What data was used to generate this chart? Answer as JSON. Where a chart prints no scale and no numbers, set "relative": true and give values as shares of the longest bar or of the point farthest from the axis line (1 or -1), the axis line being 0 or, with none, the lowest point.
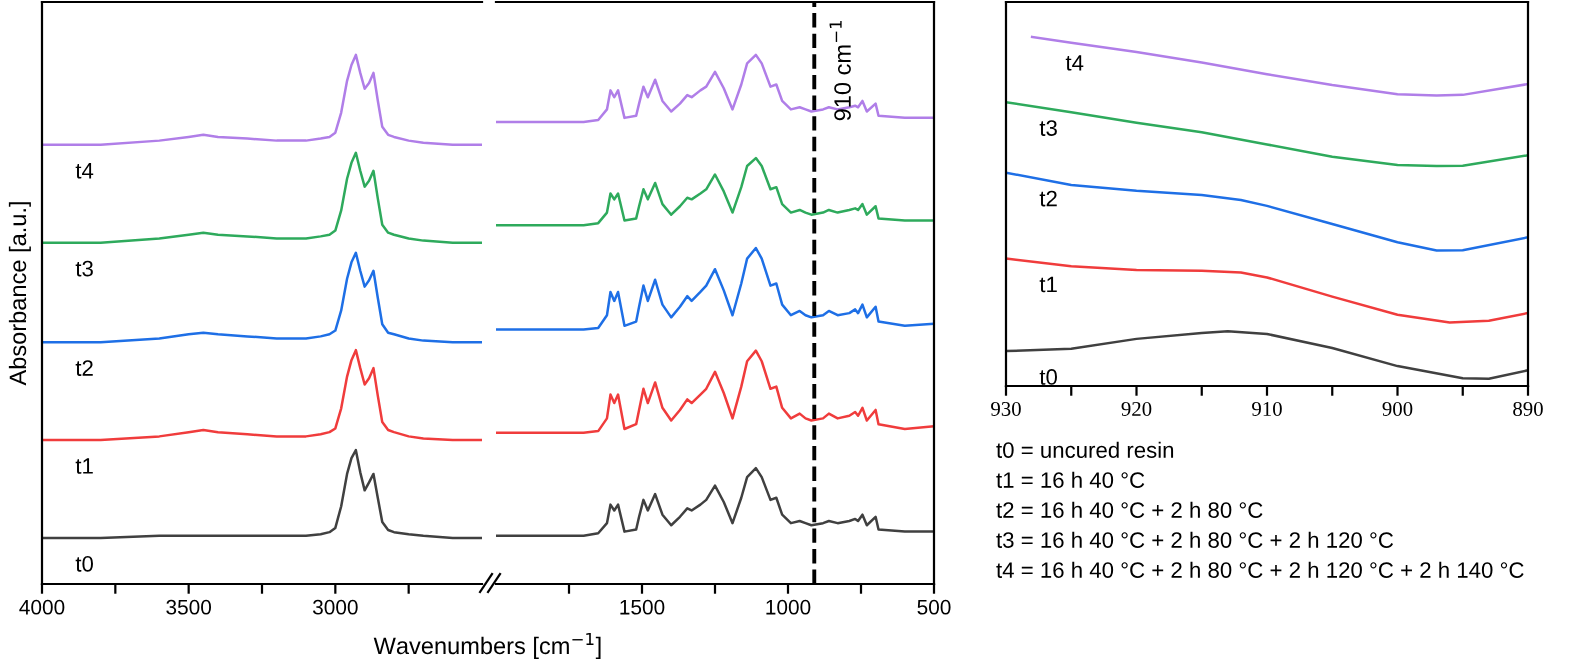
{
  "chart_data": [
    {
      "type": "line",
      "relative": true,
      "ylabel": "Absorbance [a.u.]",
      "xlabel": "Wavenumbers [cm$^{−1}$]",
      "xlim": [
        4000,
        2500
      ],
      "xticks": [
        4000,
        {
          "value": 3750,
          "label": null
        },
        3500,
        {
          "value": 3250,
          "label": null
        },
        3000,
        {
          "value": 2750,
          "label": null
        }
      ],
      "x": [
        4000,
        3800,
        3600,
        3500,
        3450,
        3400,
        3300,
        3200,
        3100,
        3050,
        3020,
        3000,
        2980,
        2960,
        2945,
        2930,
        2915,
        2900,
        2885,
        2870,
        2855,
        2840,
        2820,
        2800,
        2750,
        2700,
        2600,
        2500
      ],
      "series": [
        {
          "name": "t0",
          "color": "#404040",
          "values": [
            0.087,
            0.087,
            0.091,
            0.091,
            0.091,
            0.091,
            0.091,
            0.091,
            0.091,
            0.094,
            0.098,
            0.106,
            0.147,
            0.208,
            0.238,
            0.253,
            0.211,
            0.177,
            0.192,
            0.208,
            0.162,
            0.117,
            0.102,
            0.098,
            0.094,
            0.091,
            0.087,
            0.087
          ]
        },
        {
          "name": "t1",
          "color": "#f03c3c",
          "values": [
            0.272,
            0.272,
            0.279,
            0.287,
            0.291,
            0.287,
            0.283,
            0.279,
            0.279,
            0.283,
            0.287,
            0.294,
            0.332,
            0.392,
            0.423,
            0.442,
            0.408,
            0.377,
            0.389,
            0.408,
            0.355,
            0.306,
            0.291,
            0.287,
            0.279,
            0.275,
            0.272,
            0.272
          ]
        },
        {
          "name": "t2",
          "color": "#1e6fe6",
          "values": [
            0.457,
            0.457,
            0.464,
            0.472,
            0.475,
            0.472,
            0.468,
            0.464,
            0.464,
            0.468,
            0.472,
            0.479,
            0.517,
            0.577,
            0.608,
            0.626,
            0.592,
            0.562,
            0.574,
            0.592,
            0.54,
            0.491,
            0.475,
            0.472,
            0.464,
            0.46,
            0.457,
            0.457
          ]
        },
        {
          "name": "t3",
          "color": "#2eaa5c",
          "values": [
            0.645,
            0.645,
            0.653,
            0.66,
            0.664,
            0.66,
            0.657,
            0.653,
            0.653,
            0.657,
            0.66,
            0.668,
            0.706,
            0.766,
            0.796,
            0.815,
            0.781,
            0.751,
            0.762,
            0.781,
            0.728,
            0.679,
            0.664,
            0.66,
            0.653,
            0.649,
            0.645,
            0.645
          ]
        },
        {
          "name": "t4",
          "color": "#b07ee8",
          "values": [
            0.83,
            0.83,
            0.838,
            0.845,
            0.849,
            0.845,
            0.842,
            0.838,
            0.838,
            0.842,
            0.845,
            0.853,
            0.891,
            0.951,
            0.981,
            1.0,
            0.966,
            0.936,
            0.947,
            0.966,
            0.913,
            0.864,
            0.849,
            0.845,
            0.838,
            0.834,
            0.83,
            0.83
          ]
        }
      ]
    },
    {
      "type": "line",
      "relative": true,
      "xlim": [
        2000,
        500
      ],
      "xticks": [
        {
          "value": 1750,
          "label": null
        },
        1500,
        {
          "value": 1250,
          "label": null
        },
        1000,
        {
          "value": 750,
          "label": null
        },
        500
      ],
      "x": [
        2000,
        1700,
        1650,
        1620,
        1608,
        1595,
        1582,
        1560,
        1520,
        1510,
        1495,
        1480,
        1455,
        1430,
        1400,
        1370,
        1345,
        1330,
        1300,
        1280,
        1250,
        1220,
        1190,
        1160,
        1140,
        1110,
        1090,
        1060,
        1040,
        1020,
        990,
        960,
        940,
        920,
        880,
        860,
        830,
        790,
        770,
        760,
        745,
        730,
        700,
        690,
        600,
        500
      ],
      "ref_lines": [
        {
          "axis": "x",
          "value": 910,
          "label": "910 cm$^{−1}$",
          "color": "#000000",
          "line_style": "dashed"
        }
      ],
      "series": [
        {
          "color": "#404040",
          "values": [
            0.091,
            0.091,
            0.096,
            0.115,
            0.15,
            0.139,
            0.15,
            0.099,
            0.103,
            0.127,
            0.159,
            0.139,
            0.17,
            0.131,
            0.111,
            0.127,
            0.143,
            0.139,
            0.15,
            0.159,
            0.186,
            0.155,
            0.115,
            0.163,
            0.202,
            0.219,
            0.202,
            0.159,
            0.163,
            0.131,
            0.115,
            0.119,
            0.115,
            0.111,
            0.115,
            0.119,
            0.115,
            0.119,
            0.123,
            0.119,
            0.131,
            0.111,
            0.127,
            0.103,
            0.099,
            0.099
          ]
        },
        {
          "color": "#f03c3c",
          "values": [
            0.286,
            0.286,
            0.289,
            0.313,
            0.358,
            0.342,
            0.358,
            0.293,
            0.302,
            0.329,
            0.369,
            0.342,
            0.381,
            0.333,
            0.309,
            0.329,
            0.349,
            0.342,
            0.358,
            0.369,
            0.401,
            0.361,
            0.313,
            0.373,
            0.421,
            0.441,
            0.421,
            0.369,
            0.373,
            0.333,
            0.313,
            0.322,
            0.313,
            0.309,
            0.313,
            0.322,
            0.313,
            0.318,
            0.325,
            0.318,
            0.333,
            0.309,
            0.329,
            0.302,
            0.293,
            0.298
          ]
        },
        {
          "color": "#1e6fe6",
          "values": [
            0.481,
            0.481,
            0.484,
            0.508,
            0.552,
            0.535,
            0.552,
            0.488,
            0.496,
            0.524,
            0.564,
            0.535,
            0.575,
            0.528,
            0.504,
            0.524,
            0.544,
            0.535,
            0.552,
            0.564,
            0.595,
            0.555,
            0.508,
            0.568,
            0.615,
            0.635,
            0.615,
            0.564,
            0.568,
            0.528,
            0.508,
            0.516,
            0.508,
            0.504,
            0.508,
            0.516,
            0.508,
            0.512,
            0.519,
            0.512,
            0.528,
            0.504,
            0.524,
            0.496,
            0.488,
            0.492
          ]
        },
        {
          "color": "#2eaa5c",
          "values": [
            0.678,
            0.678,
            0.682,
            0.702,
            0.738,
            0.727,
            0.738,
            0.687,
            0.691,
            0.714,
            0.746,
            0.727,
            0.758,
            0.718,
            0.698,
            0.714,
            0.73,
            0.727,
            0.738,
            0.746,
            0.774,
            0.742,
            0.702,
            0.75,
            0.79,
            0.805,
            0.79,
            0.746,
            0.75,
            0.718,
            0.702,
            0.707,
            0.702,
            0.698,
            0.702,
            0.707,
            0.702,
            0.707,
            0.71,
            0.707,
            0.718,
            0.698,
            0.714,
            0.691,
            0.687,
            0.687
          ]
        },
        {
          "color": "#b07ee8",
          "values": [
            0.873,
            0.873,
            0.877,
            0.897,
            0.933,
            0.92,
            0.933,
            0.881,
            0.885,
            0.908,
            0.94,
            0.92,
            0.953,
            0.913,
            0.893,
            0.908,
            0.924,
            0.92,
            0.933,
            0.94,
            0.968,
            0.937,
            0.897,
            0.944,
            0.984,
            1.0,
            0.984,
            0.94,
            0.944,
            0.913,
            0.897,
            0.901,
            0.897,
            0.893,
            0.897,
            0.901,
            0.897,
            0.901,
            0.904,
            0.901,
            0.913,
            0.893,
            0.908,
            0.885,
            0.881,
            0.881
          ]
        }
      ]
    },
    {
      "type": "line",
      "relative": true,
      "xlim": [
        930,
        890
      ],
      "xticks": [
        930,
        {
          "value": 925,
          "label": null
        },
        920,
        {
          "value": 915,
          "label": null
        },
        910,
        {
          "value": 905,
          "label": null
        },
        900,
        {
          "value": 895,
          "label": null
        },
        890
      ],
      "annotations": [
        "t0 = uncured resin",
        "t1 = 16 h 40 °C",
        "t2 = 16 h 40 °C + 2 h 80 °C",
        "t3 = 16 h 40 °C + 2 h 80 °C + 2 h 120 °C",
        "t4 = 16 h 40 °C + 2 h 80 °C + 2 h 120 °C + 2 h 140 °C"
      ],
      "series": [
        {
          "name": "t0",
          "color": "#404040",
          "x": [
            930,
            925,
            920,
            915,
            913,
            910,
            905,
            900,
            895,
            893,
            890
          ],
          "values": [
            0.1,
            0.107,
            0.135,
            0.152,
            0.157,
            0.149,
            0.109,
            0.057,
            0.022,
            0.021,
            0.045
          ]
        },
        {
          "name": "t1",
          "color": "#f03c3c",
          "x": [
            930,
            925,
            920,
            915,
            912,
            910,
            905,
            900,
            896,
            893,
            890
          ],
          "values": [
            0.365,
            0.343,
            0.332,
            0.33,
            0.325,
            0.311,
            0.256,
            0.204,
            0.182,
            0.187,
            0.209
          ]
        },
        {
          "name": "t2",
          "color": "#1e6fe6",
          "x": [
            930,
            925,
            920,
            915,
            912,
            910,
            905,
            900,
            897,
            895,
            890
          ],
          "values": [
            0.611,
            0.576,
            0.559,
            0.547,
            0.533,
            0.516,
            0.464,
            0.412,
            0.388,
            0.389,
            0.426
          ]
        },
        {
          "name": "t3",
          "color": "#2eaa5c",
          "x": [
            930,
            925,
            920,
            915,
            910,
            905,
            900,
            897,
            895,
            890
          ],
          "values": [
            0.813,
            0.784,
            0.754,
            0.727,
            0.692,
            0.657,
            0.633,
            0.63,
            0.631,
            0.661
          ]
        },
        {
          "name": "t4",
          "color": "#b07ee8",
          "x": [
            928,
            925,
            920,
            915,
            910,
            905,
            900,
            897,
            895,
            890
          ],
          "values": [
            1.0,
            0.983,
            0.957,
            0.927,
            0.893,
            0.862,
            0.836,
            0.832,
            0.834,
            0.865
          ]
        }
      ]
    }
  ]
}
